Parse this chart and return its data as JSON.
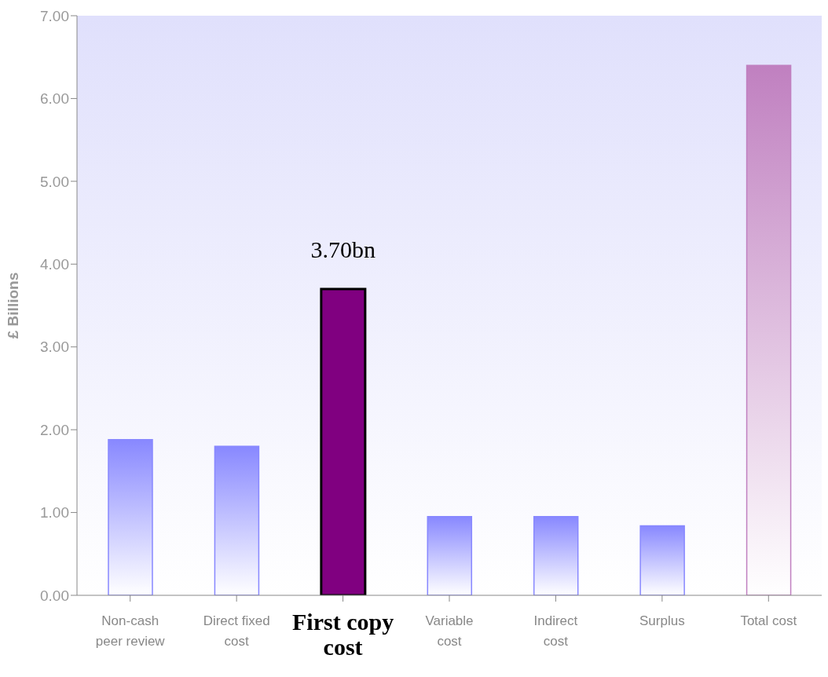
{
  "chart_data": {
    "type": "bar",
    "ylabel": "£ Billions",
    "categories": [
      "Non-cash peer review",
      "Direct fixed cost",
      "First copy cost",
      "Variable cost",
      "Indirect cost",
      "Surplus",
      "Total cost"
    ],
    "values": [
      1.88,
      1.8,
      3.7,
      0.95,
      0.95,
      0.84,
      6.4
    ],
    "colors": [
      "#8888ff",
      "#8888ff",
      "#800080",
      "#8888ff",
      "#8888ff",
      "#8888ff",
      "#c080c0"
    ],
    "value_labels": [
      null,
      null,
      "3.70bn",
      null,
      null,
      null,
      null
    ],
    "ylim": [
      0,
      7
    ],
    "yticks": [
      {
        "value": 0,
        "label": "0.00"
      },
      {
        "value": 1,
        "label": "1.00"
      },
      {
        "value": 2,
        "label": "2.00"
      },
      {
        "value": 3,
        "label": "3.00"
      },
      {
        "value": 4,
        "label": "4.00"
      },
      {
        "value": 5,
        "label": "5.00"
      },
      {
        "value": 6,
        "label": "6.00"
      },
      {
        "value": 7,
        "label": "7.00"
      }
    ],
    "grid": false,
    "legend": false
  }
}
